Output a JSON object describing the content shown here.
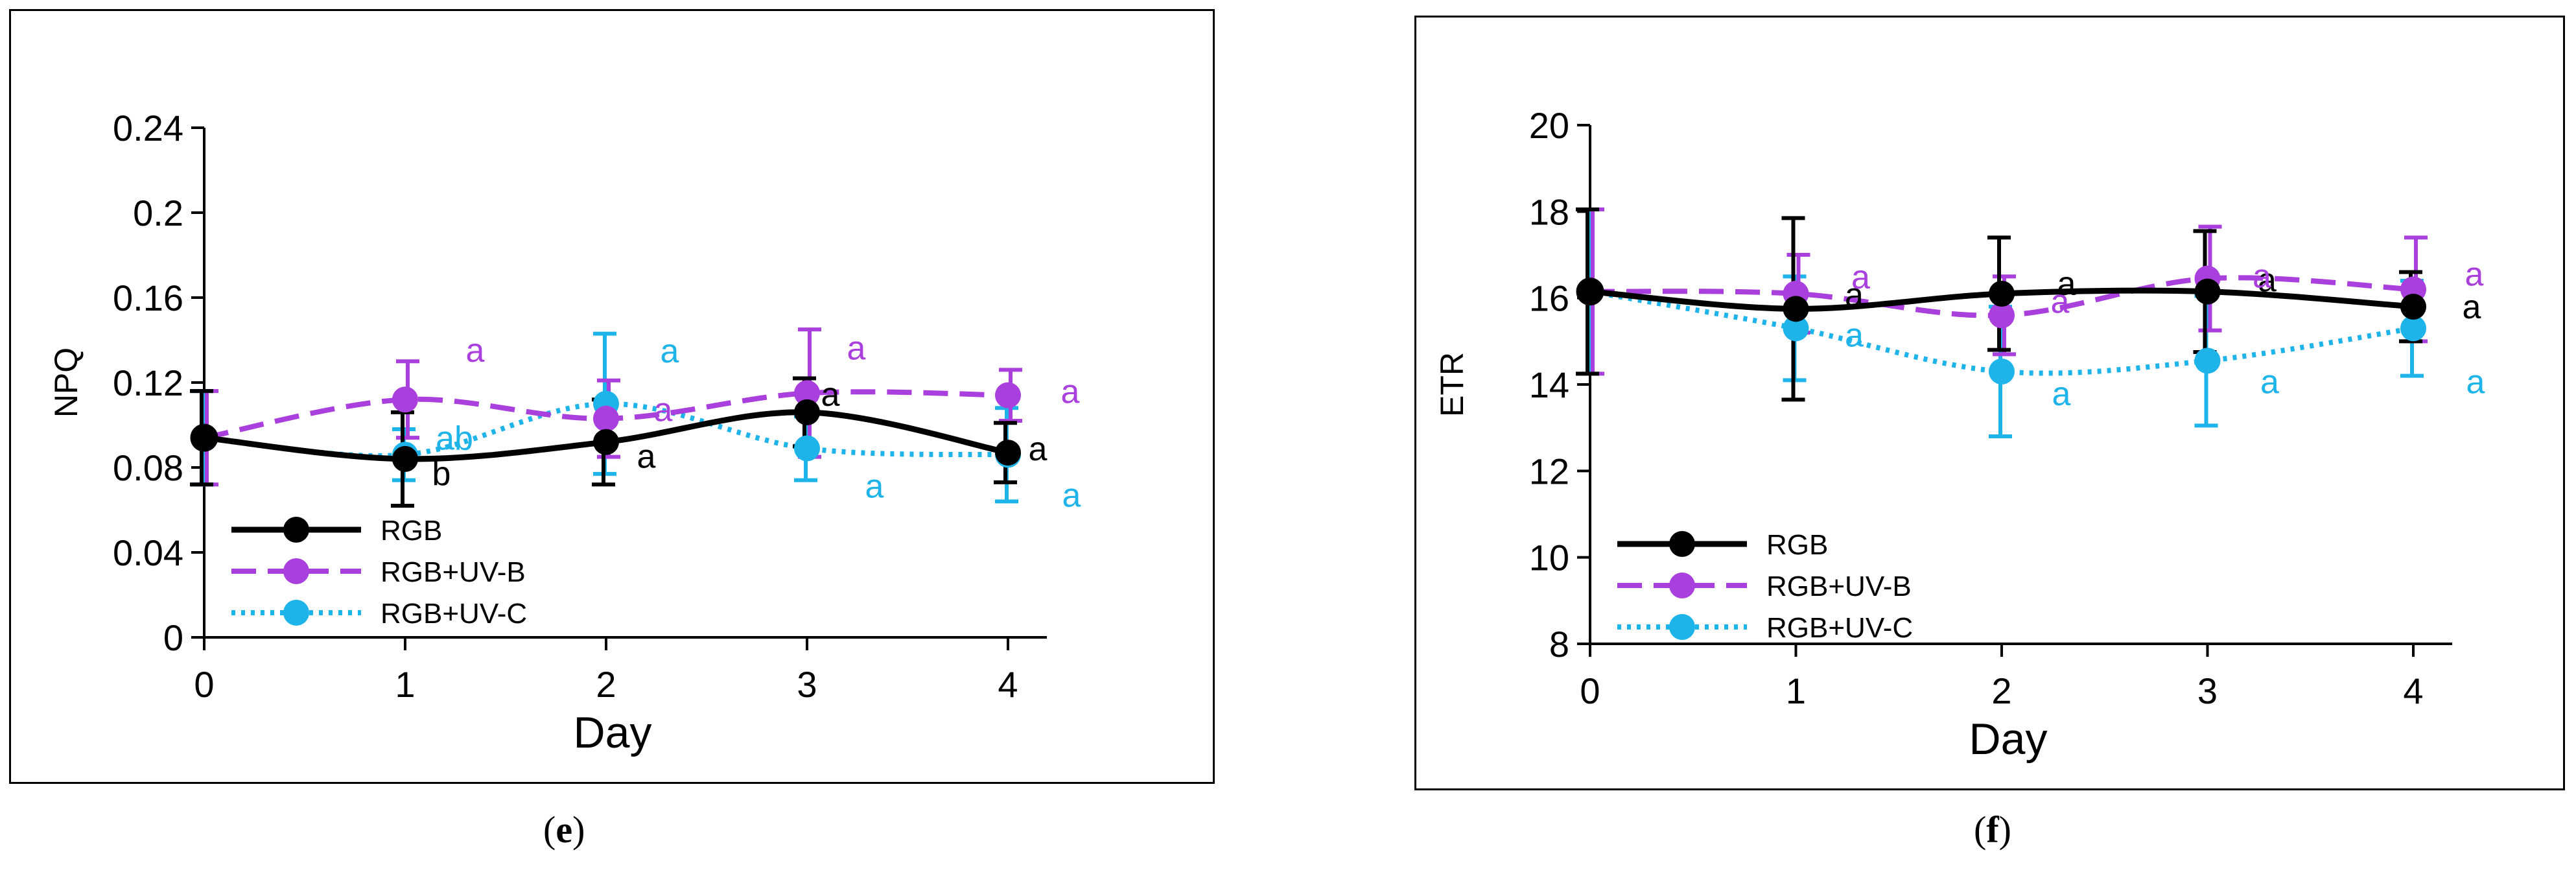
{
  "colors": {
    "rgb": "#000000",
    "uvb": "#a93fdc",
    "uvc": "#1eb4ea"
  },
  "chart_data": [
    {
      "panel": "e",
      "type": "line",
      "xlabel": "Day",
      "ylabel": "NPQ",
      "ylim": [
        0,
        0.24
      ],
      "yticks": [
        0,
        0.04,
        0.08,
        0.12,
        0.16,
        0.2,
        0.24
      ],
      "ytick_labels": [
        "0",
        "0.04",
        "0.08",
        "0.12",
        "0.16",
        "0.2",
        "0.24"
      ],
      "x": [
        0,
        1,
        2,
        3,
        4
      ],
      "xtick_labels": [
        "0",
        "1",
        "2",
        "3",
        "4"
      ],
      "grid": false,
      "legend_placement": "bottom-left",
      "series": [
        {
          "name": "RGB",
          "style": "solid",
          "color": "#000000",
          "values": [
            0.094,
            0.084,
            0.092,
            0.106,
            0.087
          ],
          "errors": [
            0.022,
            0.022,
            0.02,
            0.016,
            0.014
          ],
          "letters": [
            "",
            "b",
            "a",
            "a",
            "a"
          ]
        },
        {
          "name": "RGB+UV-B",
          "style": "dashed",
          "color": "#a93fdc",
          "values": [
            0.094,
            0.112,
            0.103,
            0.115,
            0.114
          ],
          "errors": [
            0.022,
            0.018,
            0.018,
            0.03,
            0.012
          ],
          "letters": [
            "",
            "a",
            "a",
            "a",
            "a"
          ]
        },
        {
          "name": "RGB+UV-C",
          "style": "dotted",
          "color": "#1eb4ea",
          "values": [
            0.094,
            0.086,
            0.11,
            0.089,
            0.086
          ],
          "errors": [
            0.022,
            0.012,
            0.033,
            0.015,
            0.022
          ],
          "letters": [
            "",
            "ab",
            "a",
            "a",
            "a"
          ]
        }
      ]
    },
    {
      "panel": "f",
      "type": "line",
      "xlabel": "Day",
      "ylabel": "ETR",
      "ylim": [
        8,
        20
      ],
      "yticks": [
        8,
        10,
        12,
        14,
        16,
        18,
        20
      ],
      "ytick_labels": [
        "8",
        "10",
        "12",
        "14",
        "16",
        "18",
        "20"
      ],
      "x": [
        0,
        1,
        2,
        3,
        4
      ],
      "xtick_labels": [
        "0",
        "1",
        "2",
        "3",
        "4"
      ],
      "grid": false,
      "legend_placement": "bottom-left",
      "series": [
        {
          "name": "RGB",
          "style": "solid",
          "color": "#000000",
          "values": [
            16.15,
            15.75,
            16.1,
            16.15,
            15.8
          ],
          "errors": [
            1.9,
            2.1,
            1.3,
            1.4,
            0.8
          ],
          "letters": [
            "",
            "a",
            "a",
            "a",
            "a"
          ]
        },
        {
          "name": "RGB+UV-B",
          "style": "dashed",
          "color": "#a93fdc",
          "values": [
            16.15,
            16.1,
            15.6,
            16.45,
            16.2
          ],
          "errors": [
            1.9,
            0.9,
            0.9,
            1.2,
            1.2
          ],
          "letters": [
            "",
            "a",
            "a",
            "a",
            "a"
          ]
        },
        {
          "name": "RGB+UV-C",
          "style": "dotted",
          "color": "#1eb4ea",
          "values": [
            16.15,
            15.3,
            14.3,
            14.55,
            15.3
          ],
          "errors": [
            1.9,
            1.2,
            1.5,
            1.5,
            1.1
          ],
          "letters": [
            "",
            "a",
            "a",
            "a",
            "a"
          ]
        }
      ]
    }
  ],
  "captions": [
    "e",
    "f"
  ]
}
